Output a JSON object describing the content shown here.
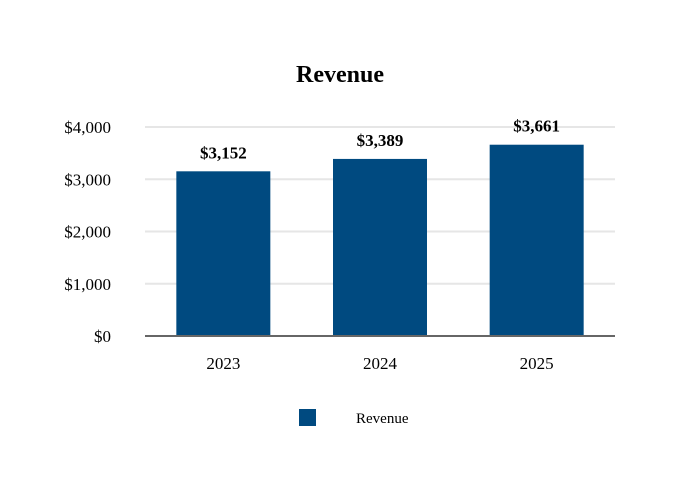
{
  "chart_data": {
    "type": "bar",
    "title": "Revenue",
    "xlabel": "",
    "ylabel": "",
    "categories": [
      "2023",
      "2024",
      "2025"
    ],
    "series": [
      {
        "name": "Revenue",
        "values": [
          3152,
          3389,
          3661
        ],
        "color": "#004a80"
      }
    ],
    "data_labels": [
      "$3,152",
      "$3,389",
      "$3,661"
    ],
    "ylim": [
      0,
      4000
    ],
    "yticks": [
      0,
      1000,
      2000,
      3000,
      4000
    ],
    "ytick_labels": [
      "$0",
      "$1,000",
      "$2,000",
      "$3,000",
      "$4,000"
    ],
    "grid": true,
    "legend": "bottom-center",
    "colors": {
      "bar": "#004a80",
      "grid": "#e6e6e6",
      "axis": "#666666"
    }
  }
}
